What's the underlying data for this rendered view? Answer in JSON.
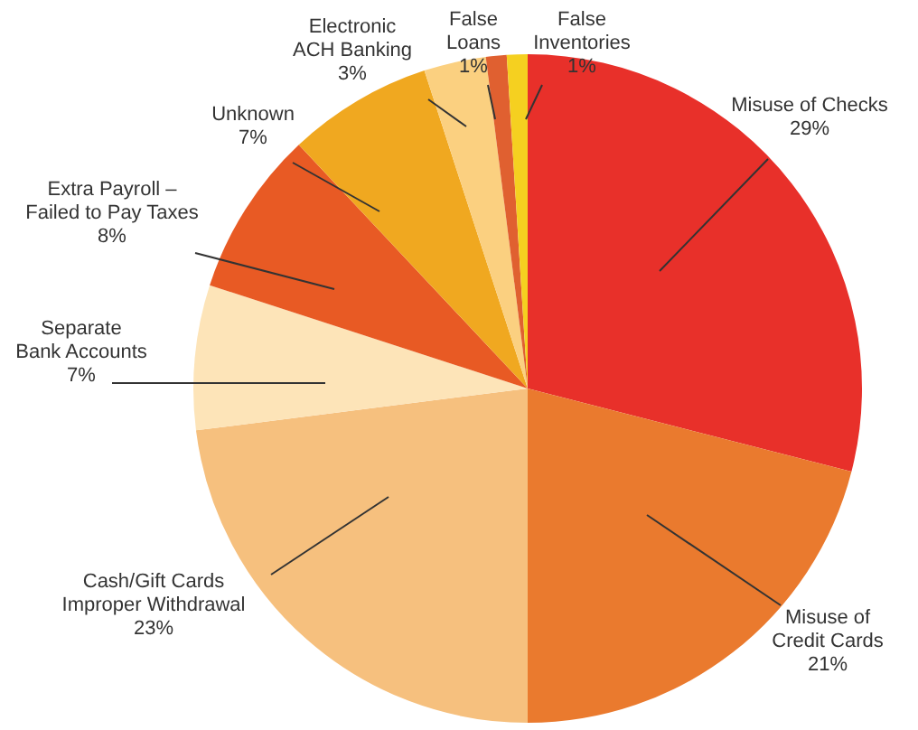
{
  "chart_data": {
    "type": "pie",
    "categories": [
      "Misuse of Checks",
      "Misuse of\nCredit Cards",
      "Cash/Gift Cards\nImproper Withdrawal",
      "Separate\nBank Accounts",
      "Extra Payroll –\nFailed to Pay Taxes",
      "Unknown",
      "Electronic\nACH Banking",
      "False\nLoans",
      "False\nInventories"
    ],
    "values": [
      29,
      21,
      23,
      7,
      8,
      7,
      3,
      1,
      1
    ],
    "colors": [
      "#e8302a",
      "#ea7a2e",
      "#f6c07e",
      "#fde4b8",
      "#e85a24",
      "#f0a820",
      "#fbd080",
      "#e06030",
      "#f5d020"
    ],
    "value_labels": [
      "29%",
      "21%",
      "23%",
      "7%",
      "8%",
      "7%",
      "3%",
      "1%",
      "1%"
    ],
    "legend": false
  }
}
